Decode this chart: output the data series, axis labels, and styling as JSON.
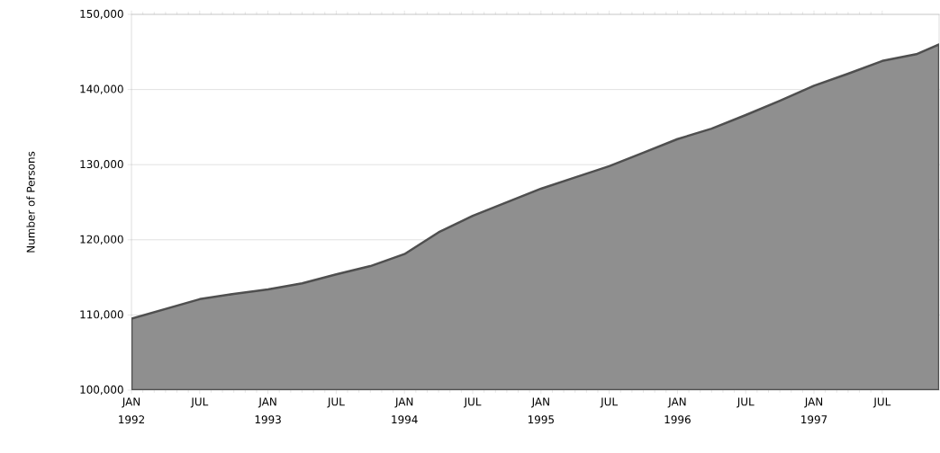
{
  "chart_data": {
    "type": "area",
    "ylabel": "Number of Persons",
    "x": [
      "1992-01",
      "1992-04",
      "1992-07",
      "1992-10",
      "1993-01",
      "1993-04",
      "1993-07",
      "1993-10",
      "1994-01",
      "1994-04",
      "1994-07",
      "1994-10",
      "1995-01",
      "1995-04",
      "1995-07",
      "1995-10",
      "1996-01",
      "1996-04",
      "1996-07",
      "1996-10",
      "1997-01",
      "1997-04",
      "1997-07",
      "1997-10",
      "1997-12"
    ],
    "series": [
      {
        "color": "#8f8f8f",
        "values": [
          109500,
          110800,
          112100,
          112800,
          113400,
          114200,
          115400,
          116500,
          118100,
          121000,
          123200,
          125000,
          126800,
          128300,
          129800,
          131600,
          133400,
          134800,
          136600,
          138500,
          140500,
          142100,
          143800,
          144700,
          146000
        ]
      }
    ],
    "xlim": [
      "1992-01",
      "1997-12"
    ],
    "xticks": [
      {
        "value": "1992-01",
        "label": "JAN 1992"
      },
      {
        "value": "1992-07",
        "label": "JUL"
      },
      {
        "value": "1993-01",
        "label": "JAN 1993"
      },
      {
        "value": "1993-07",
        "label": "JUL"
      },
      {
        "value": "1994-01",
        "label": "JAN 1994"
      },
      {
        "value": "1994-07",
        "label": "JUL"
      },
      {
        "value": "1995-01",
        "label": "JAN 1995"
      },
      {
        "value": "1995-07",
        "label": "JUL"
      },
      {
        "value": "1996-01",
        "label": "JAN 1996"
      },
      {
        "value": "1996-07",
        "label": "JUL"
      },
      {
        "value": "1997-01",
        "label": "JAN 1997"
      },
      {
        "value": "1997-07",
        "label": "JUL"
      }
    ],
    "ylim": [
      100000,
      150000
    ],
    "yticks": [
      {
        "value": 100000,
        "label": "100,000"
      },
      {
        "value": 110000,
        "label": "110,000"
      },
      {
        "value": 120000,
        "label": "120,000"
      },
      {
        "value": 130000,
        "label": "130,000"
      },
      {
        "value": 140000,
        "label": "140,000"
      },
      {
        "value": 150000,
        "label": "150,000"
      }
    ],
    "grid": "y"
  }
}
